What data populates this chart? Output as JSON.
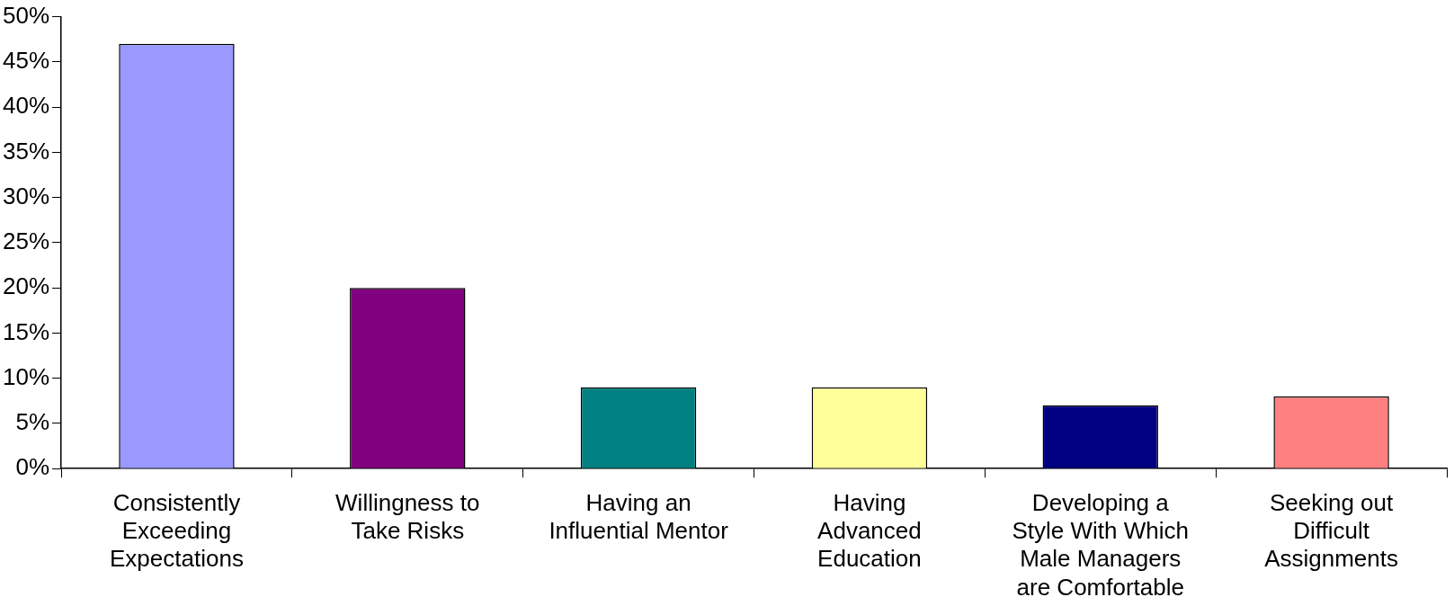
{
  "chart_data": {
    "type": "bar",
    "categories": [
      "Consistently Exceeding Expectations",
      "Willingness to Take Risks",
      "Having an Influential Mentor",
      "Having Advanced Education",
      "Developing a Style With Which Male Managers are Comfortable",
      "Seeking out Difficult Assignments"
    ],
    "values": [
      47,
      20,
      9,
      9,
      7,
      8
    ],
    "colors": [
      "#9999ff",
      "#800080",
      "#008080",
      "#ffff99",
      "#000080",
      "#ff8080"
    ],
    "ylim": [
      0,
      50
    ],
    "yticks": [
      {
        "value": 0,
        "label": "0%"
      },
      {
        "value": 5,
        "label": "5%"
      },
      {
        "value": 10,
        "label": "10%"
      },
      {
        "value": 15,
        "label": "15%"
      },
      {
        "value": 20,
        "label": "20%"
      },
      {
        "value": 25,
        "label": "25%"
      },
      {
        "value": 30,
        "label": "30%"
      },
      {
        "value": 35,
        "label": "35%"
      },
      {
        "value": 40,
        "label": "40%"
      },
      {
        "value": 45,
        "label": "45%"
      },
      {
        "value": 50,
        "label": "50%"
      }
    ],
    "grid": false,
    "legend": false
  }
}
